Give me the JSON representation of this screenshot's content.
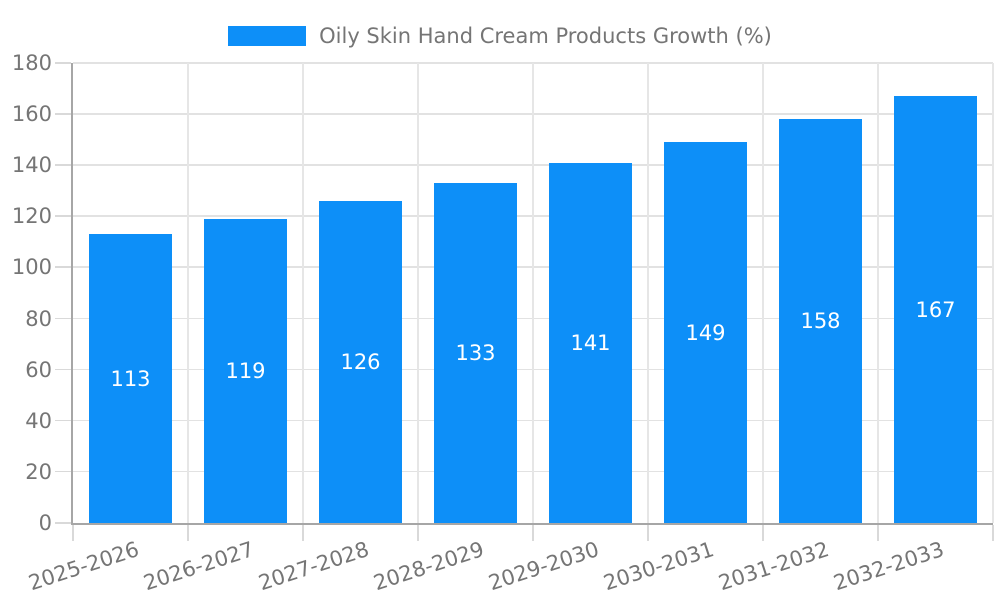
{
  "chart_data": {
    "type": "bar",
    "title": "Oily Skin Hand Cream Products Growth (%)",
    "categories": [
      "2025-2026",
      "2026-2027",
      "2027-2028",
      "2028-2029",
      "2029-2030",
      "2030-2031",
      "2031-2032",
      "2032-2033"
    ],
    "values": [
      113,
      119,
      126,
      133,
      141,
      149,
      158,
      167
    ],
    "xlabel": "",
    "ylabel": "",
    "ylim": [
      0,
      180
    ],
    "yticks": [
      0,
      20,
      40,
      60,
      80,
      100,
      120,
      140,
      160,
      180
    ],
    "grid": true,
    "legend_position": "top",
    "value_labels": "inside-center-white"
  },
  "legend": {
    "swatch_color": "#0D8FF8",
    "label": "Oily Skin Hand Cream Products Growth (%)"
  },
  "colors": {
    "bar": "#0D8FF8",
    "axis_line": "#a6a6a6",
    "gridline_h": "#e2e2e2",
    "gridline_v": "#e6e6e6",
    "tick": "#d9d9d9",
    "axis_text": "#757575",
    "value_text": "#ffffff",
    "background": "#ffffff"
  }
}
